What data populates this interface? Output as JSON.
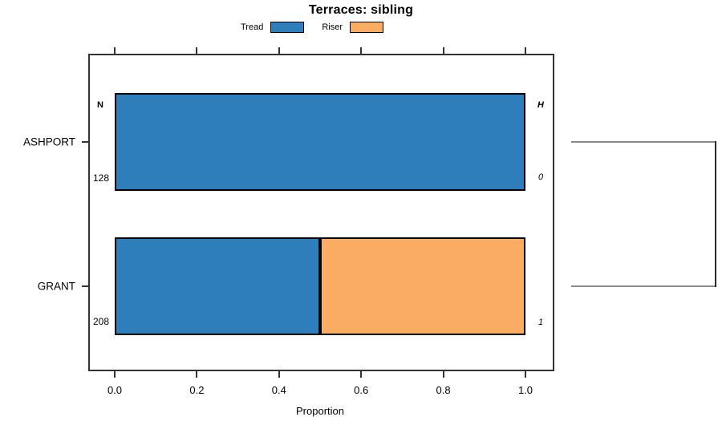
{
  "title": "Terraces: sibling",
  "legend": {
    "items": [
      {
        "label": "Tread",
        "color": "#2E7EBB"
      },
      {
        "label": "Riser",
        "color": "#FAAD62"
      }
    ]
  },
  "axis": {
    "x_label": "Proportion",
    "x_ticks": [
      "0.0",
      "0.2",
      "0.4",
      "0.6",
      "0.8",
      "1.0"
    ],
    "y_categories": [
      "ASHPORT",
      "GRANT"
    ]
  },
  "chart_data": {
    "type": "bar",
    "orientation": "horizontal",
    "stacked": true,
    "title": "Terraces: sibling",
    "xlabel": "Proportion",
    "xlim": [
      0,
      1
    ],
    "grid": false,
    "legend_position": "top",
    "categories": [
      "ASHPORT",
      "GRANT"
    ],
    "series": [
      {
        "name": "Tread",
        "color": "#2E7EBB",
        "values": [
          1.0,
          0.5
        ]
      },
      {
        "name": "Riser",
        "color": "#FAAD62",
        "values": [
          0.0,
          0.5
        ]
      }
    ],
    "annotations": {
      "left_header": "N",
      "right_header": "H",
      "rows": [
        {
          "category": "ASHPORT",
          "n": "128",
          "h": "0"
        },
        {
          "category": "GRANT",
          "n": "208",
          "h": "1"
        }
      ]
    }
  }
}
